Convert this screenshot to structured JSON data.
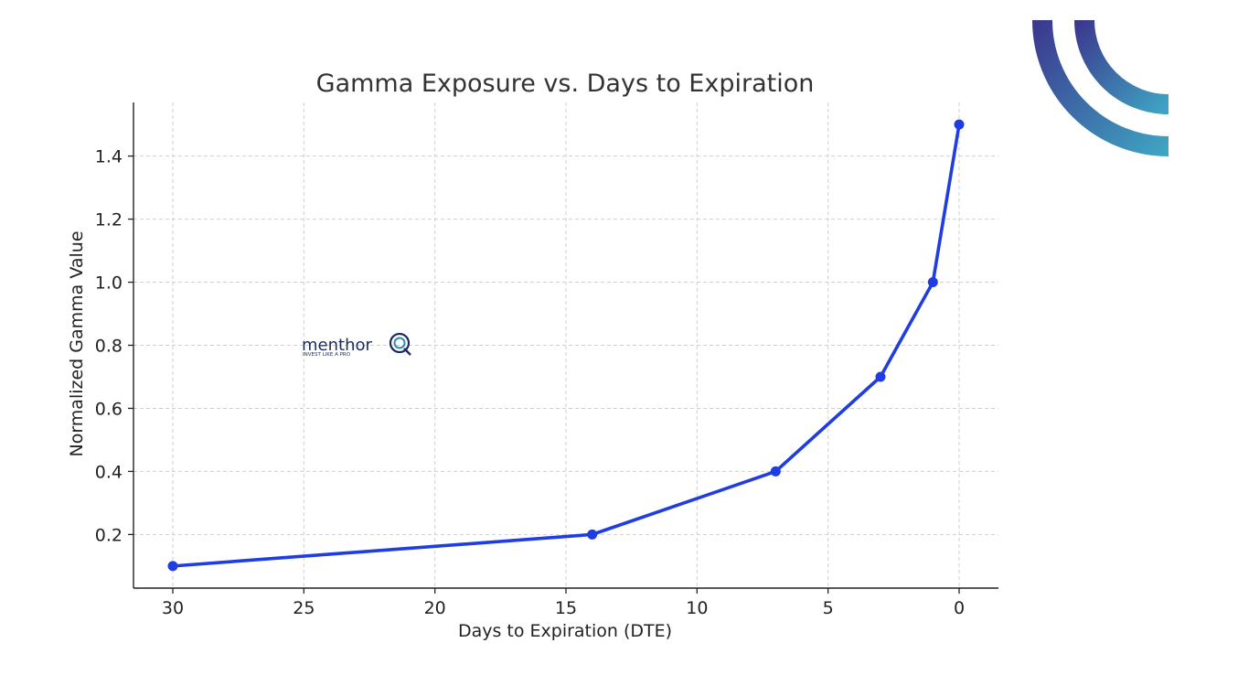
{
  "chart_data": {
    "type": "line",
    "title": "Gamma Exposure vs. Days to Expiration",
    "xlabel": "Days to Expiration (DTE)",
    "ylabel": "Normalized Gamma Value",
    "x": [
      30,
      14,
      7,
      3,
      1,
      0
    ],
    "series": [
      {
        "values": [
          0.1,
          0.2,
          0.4,
          0.7,
          1.0,
          1.5
        ],
        "color": "#1f3de0"
      }
    ],
    "xlim": [
      31.5,
      -1.5
    ],
    "ylim": [
      0.03,
      1.57
    ],
    "x_inverted": true,
    "xticks": [
      30,
      25,
      20,
      15,
      10,
      5,
      0
    ],
    "yticks": [
      0.2,
      0.4,
      0.6,
      0.8,
      1.0,
      1.2,
      1.4
    ],
    "xtick_labels": [
      "30",
      "25",
      "20",
      "15",
      "10",
      "5",
      "0"
    ],
    "ytick_labels": [
      "0.2",
      "0.4",
      "0.6",
      "0.8",
      "1.0",
      "1.2",
      "1.4"
    ],
    "grid": true,
    "markers": true
  },
  "watermark": {
    "brand": "menthor",
    "mark": "Q",
    "tagline": "INVEST LIKE A PRO",
    "colors": {
      "text": "#1c2a5e",
      "accent": "#2f8fb0"
    }
  },
  "corner_logo": {
    "icon": "double-arc-logo",
    "colors": {
      "start": "#3b3a8f",
      "end": "#3fa3c2"
    }
  }
}
